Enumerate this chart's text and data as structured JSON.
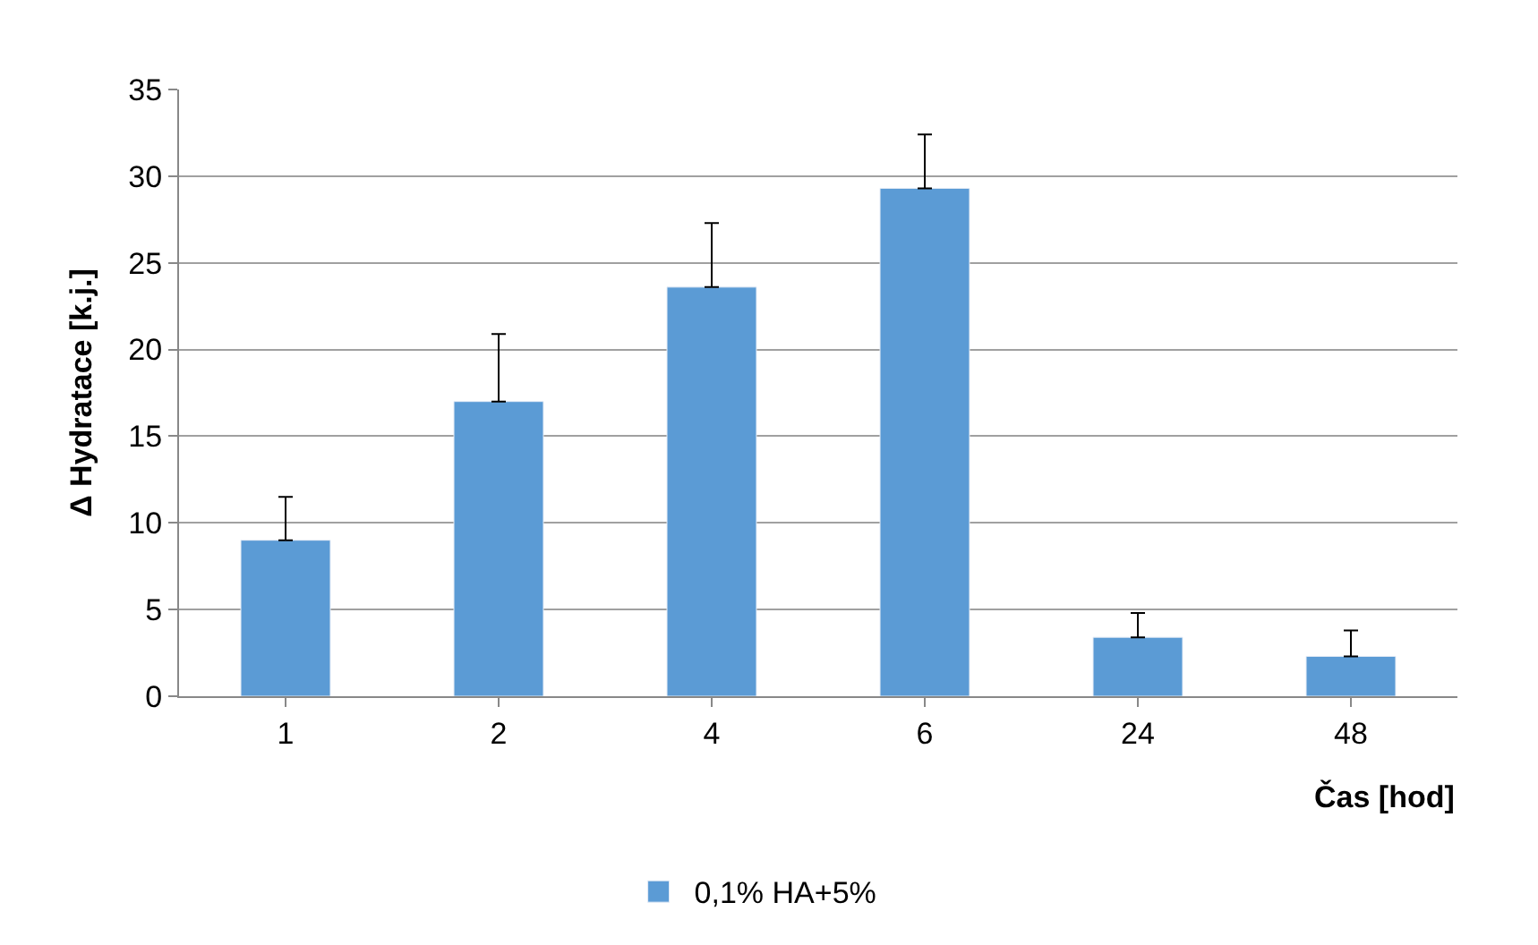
{
  "chart_data": {
    "type": "bar",
    "xlabel": "Čas [hod]",
    "ylabel": "Δ Hydratace [k.j.]",
    "categories": [
      "1",
      "2",
      "4",
      "6",
      "24",
      "48"
    ],
    "series": [
      {
        "name": "0,1% HA+5%",
        "color": "#5b9bd5",
        "values": [
          9,
          17,
          23.6,
          29.3,
          3.4,
          2.3
        ],
        "errors": [
          [
            9,
            11.5
          ],
          [
            17,
            20.9
          ],
          [
            23.6,
            27.3
          ],
          [
            29.3,
            32.4
          ],
          [
            3.4,
            4.8
          ],
          [
            2.3,
            3.8
          ]
        ]
      }
    ],
    "ylim": [
      0,
      35
    ],
    "yticks": [
      0,
      5,
      10,
      15,
      20,
      25,
      30,
      35
    ],
    "grid": "y",
    "legend": "bottom"
  }
}
